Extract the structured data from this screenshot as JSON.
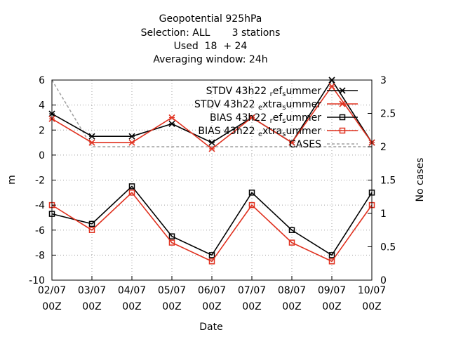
{
  "chart_data": {
    "type": "line",
    "title_lines": [
      "Geopotential 925hPa",
      "Selection: ALL       3 stations",
      "Used  18  + 24",
      "Averaging window: 24h"
    ],
    "xlabel": "Date",
    "ylabel": "m",
    "y2label": "No cases",
    "categories": [
      [
        "02/07",
        "00Z"
      ],
      [
        "03/07",
        "00Z"
      ],
      [
        "04/07",
        "00Z"
      ],
      [
        "05/07",
        "00Z"
      ],
      [
        "06/07",
        "00Z"
      ],
      [
        "07/07",
        "00Z"
      ],
      [
        "08/07",
        "00Z"
      ],
      [
        "09/07",
        "00Z"
      ],
      [
        "10/07",
        "00Z"
      ]
    ],
    "ylim": [
      -10,
      6
    ],
    "yticks": [
      "-10",
      "-8",
      "-6",
      "-4",
      "-2",
      "0",
      "2",
      "4",
      "6"
    ],
    "y2lim": [
      0,
      3
    ],
    "y2ticks": [
      "0",
      "0.5",
      "1",
      "1.5",
      "2",
      "2.5",
      "3"
    ],
    "grid": true,
    "legend_position": "top-right",
    "series": [
      {
        "name": "STDV 43h22 ref summer",
        "legend_parts": [
          "STDV 43h22",
          "r",
          "ef",
          "s",
          "ummer"
        ],
        "color": "#000000",
        "marker": "x",
        "axis": "y1",
        "values": [
          3.3,
          1.5,
          1.5,
          2.5,
          1.0,
          3.0,
          1.0,
          6.0,
          1.0
        ]
      },
      {
        "name": "STDV 43h22 extra summer",
        "legend_parts": [
          "STDV 43h22",
          "e",
          "xtra",
          "s",
          "ummer"
        ],
        "color": "#e0301e",
        "marker": "x",
        "axis": "y1",
        "values": [
          2.9,
          1.0,
          1.0,
          3.0,
          0.5,
          3.0,
          1.0,
          5.5,
          1.0
        ]
      },
      {
        "name": "BIAS 43h22 ref summer",
        "legend_parts": [
          "BIAS 43h22",
          "r",
          "ef",
          "s",
          "ummer"
        ],
        "color": "#000000",
        "marker": "square",
        "axis": "y1",
        "values": [
          -4.7,
          -5.5,
          -2.5,
          -6.5,
          -8.0,
          -3.0,
          -6.0,
          -8.0,
          -3.0
        ]
      },
      {
        "name": "BIAS 43h22 extra summer",
        "legend_parts": [
          "BIAS 43h22",
          "e",
          "xtra",
          "s",
          "ummer"
        ],
        "color": "#e0301e",
        "marker": "square",
        "axis": "y1",
        "values": [
          -4.0,
          -6.0,
          -3.0,
          -7.0,
          -8.5,
          -4.0,
          -7.0,
          -8.5,
          -4.0
        ]
      },
      {
        "name": "CASES",
        "legend_parts": [
          "CASES"
        ],
        "color": "#a0a0a0",
        "marker": "none",
        "dashed": true,
        "axis": "y2",
        "values": [
          3,
          2,
          2,
          2,
          2,
          2,
          2,
          2,
          2
        ]
      }
    ]
  }
}
